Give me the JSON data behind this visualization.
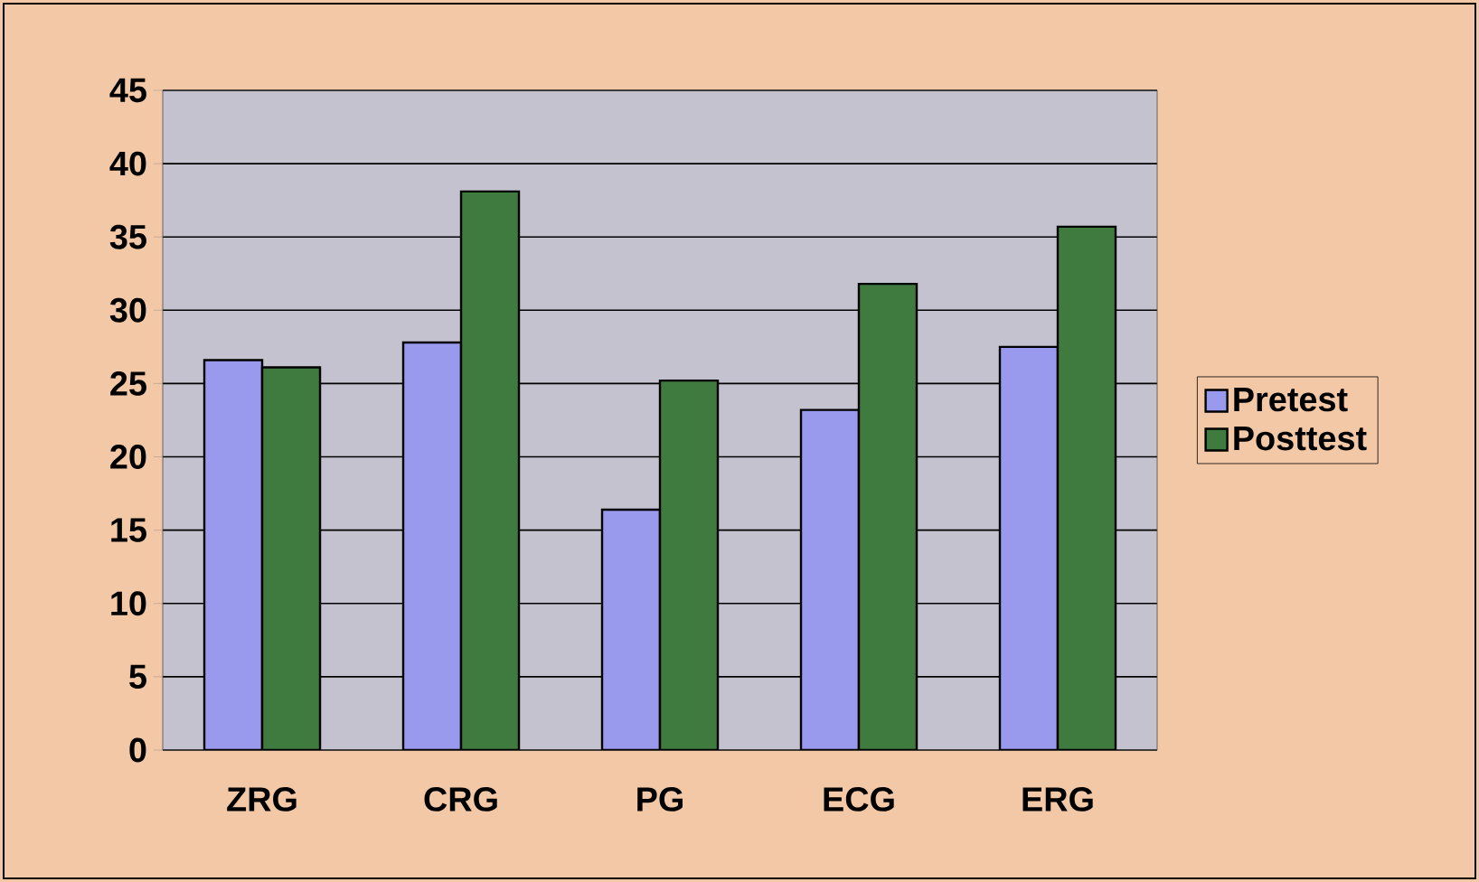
{
  "chart_data": {
    "type": "bar",
    "categories": [
      "ZRG",
      "CRG",
      "PG",
      "ECG",
      "ERG"
    ],
    "series": [
      {
        "name": "Pretest",
        "color": "#9999ee",
        "values": [
          26.6,
          27.8,
          16.4,
          23.2,
          27.5
        ]
      },
      {
        "name": "Posttest",
        "color": "#3f7a3f",
        "values": [
          26.1,
          38.1,
          25.2,
          31.8,
          35.7
        ]
      }
    ],
    "ylim": [
      0,
      45
    ],
    "yticks": [
      0,
      5,
      10,
      15,
      20,
      25,
      30,
      35,
      40,
      45
    ],
    "grid": "y",
    "legend": "right"
  }
}
